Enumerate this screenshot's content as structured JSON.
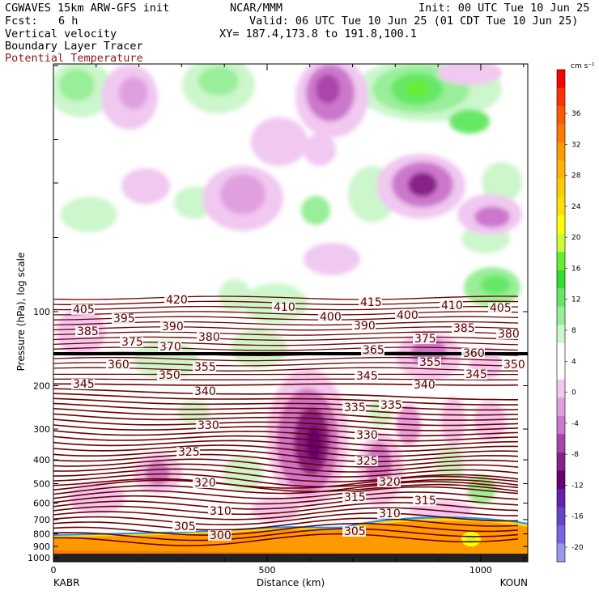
{
  "header": {
    "model": "CGWAVES 15km ARW-GFS init",
    "org": "NCAR/MMM",
    "init": "Init: 00 UTC Tue 10 Jun 25",
    "fcst_label": "Fcst:",
    "fcst_value": "6 h",
    "valid": "Valid: 06 UTC Tue 10 Jun 25 (01 CDT Tue 10 Jun 25)",
    "field1": "Vertical velocity",
    "field2": "Boundary Layer Tracer",
    "field3": "Potential Temperature",
    "xy": "XY= 187.4,173.8 to 191.8,100.1"
  },
  "colors": {
    "theta": "#6b0000",
    "field3_text": "#8b1a1a",
    "pbl_top": "#0a1a80"
  },
  "chart_data": {
    "type": "heatmap",
    "ylabel": "Pressure (hPa), log scale",
    "xlabel": "Distance (km)",
    "x_range": [
      0,
      1110
    ],
    "x_ticks": [
      0,
      500,
      1000
    ],
    "y_scale": "log",
    "y_ticks": [
      100,
      200,
      300,
      400,
      500,
      600,
      700,
      800,
      900,
      1000
    ],
    "endpoint_left": "KABR",
    "endpoint_right": "KOUN",
    "colorbar": {
      "units": "cm s⁻¹",
      "labels": [
        "36",
        "32",
        "28",
        "24",
        "20",
        "16",
        "12",
        "8",
        "4",
        "0",
        "-4",
        "-8",
        "-12",
        "-16",
        "-20"
      ],
      "colors": [
        "#ff0000",
        "#ff3300",
        "#ff5a00",
        "#ff7a00",
        "#ff9900",
        "#ffb300",
        "#ffcc00",
        "#ffe000",
        "#ffff00",
        "#ccff33",
        "#66ee33",
        "#33dd33",
        "#66e866",
        "#99ee99",
        "#ccf6cc",
        "#ffffff",
        "#ffffff",
        "#f0c8f0",
        "#e0a0e0",
        "#cc77cc",
        "#aa44aa",
        "#882288",
        "#660077",
        "#6622aa",
        "#6644cc",
        "#7766dd",
        "#9999ee"
      ]
    },
    "theta_labels": [
      {
        "v": "420",
        "x": 205,
        "y": 375
      },
      {
        "v": "415",
        "x": 445,
        "y": 378
      },
      {
        "v": "410",
        "x": 338,
        "y": 384
      },
      {
        "v": "410",
        "x": 545,
        "y": 382
      },
      {
        "v": "405",
        "x": 90,
        "y": 387
      },
      {
        "v": "405",
        "x": 605,
        "y": 385
      },
      {
        "v": "400",
        "x": 395,
        "y": 396
      },
      {
        "v": "400",
        "x": 490,
        "y": 394
      },
      {
        "v": "395",
        "x": 140,
        "y": 398
      },
      {
        "v": "390",
        "x": 200,
        "y": 408
      },
      {
        "v": "390",
        "x": 437,
        "y": 407
      },
      {
        "v": "385",
        "x": 95,
        "y": 414
      },
      {
        "v": "385",
        "x": 560,
        "y": 410
      },
      {
        "v": "380",
        "x": 245,
        "y": 421
      },
      {
        "v": "380",
        "x": 615,
        "y": 417
      },
      {
        "v": "375",
        "x": 150,
        "y": 427
      },
      {
        "v": "375",
        "x": 512,
        "y": 423
      },
      {
        "v": "370",
        "x": 197,
        "y": 433
      },
      {
        "v": "365",
        "x": 448,
        "y": 437
      },
      {
        "v": "360",
        "x": 133,
        "y": 455
      },
      {
        "v": "360",
        "x": 572,
        "y": 441
      },
      {
        "v": "355",
        "x": 240,
        "y": 458
      },
      {
        "v": "355",
        "x": 518,
        "y": 452
      },
      {
        "v": "350",
        "x": 196,
        "y": 468
      },
      {
        "v": "350",
        "x": 622,
        "y": 455
      },
      {
        "v": "345",
        "x": 440,
        "y": 469
      },
      {
        "v": "345",
        "x": 575,
        "y": 467
      },
      {
        "v": "345",
        "x": 90,
        "y": 479
      },
      {
        "v": "340",
        "x": 240,
        "y": 488
      },
      {
        "v": "340",
        "x": 511,
        "y": 480
      },
      {
        "v": "335",
        "x": 425,
        "y": 508
      },
      {
        "v": "335",
        "x": 470,
        "y": 505
      },
      {
        "v": "330",
        "x": 244,
        "y": 530
      },
      {
        "v": "330",
        "x": 440,
        "y": 542
      },
      {
        "v": "325",
        "x": 220,
        "y": 563
      },
      {
        "v": "325",
        "x": 440,
        "y": 574
      },
      {
        "v": "320",
        "x": 240,
        "y": 601
      },
      {
        "v": "320",
        "x": 468,
        "y": 600
      },
      {
        "v": "315",
        "x": 425,
        "y": 619
      },
      {
        "v": "315",
        "x": 512,
        "y": 623
      },
      {
        "v": "310",
        "x": 259,
        "y": 636
      },
      {
        "v": "310",
        "x": 468,
        "y": 639
      },
      {
        "v": "305",
        "x": 215,
        "y": 655
      },
      {
        "v": "305",
        "x": 425,
        "y": 661
      },
      {
        "v": "300",
        "x": 259,
        "y": 666
      }
    ]
  }
}
